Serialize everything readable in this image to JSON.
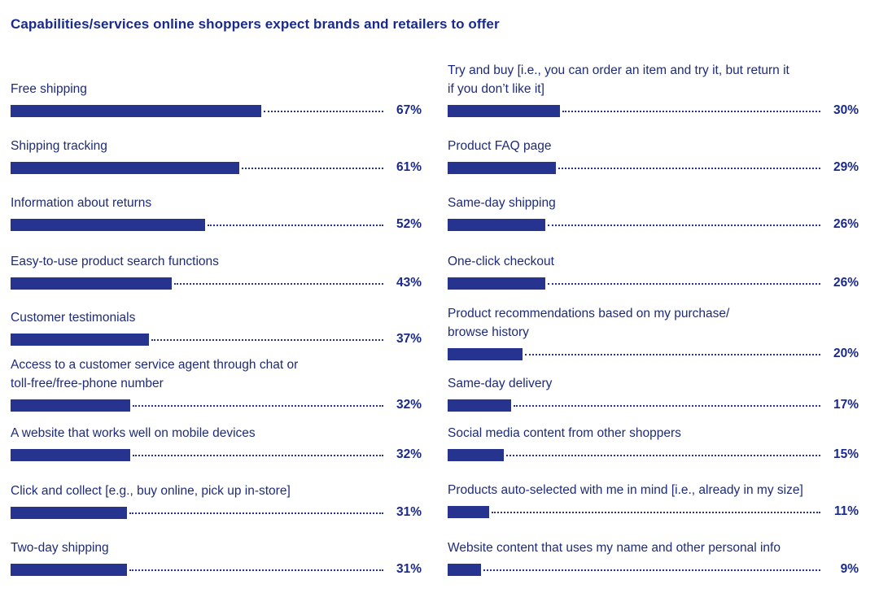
{
  "title": "Capabilities/services online shoppers expect brands and retailers to offer",
  "chart_data": {
    "type": "bar",
    "orientation": "horizontal",
    "title": "Capabilities/services online shoppers expect brands and retailers to offer",
    "xlim": [
      0,
      100
    ],
    "unit": "%",
    "bar_color": "#26348f",
    "columns": [
      {
        "items": [
          {
            "label": "Free shipping",
            "value": 67,
            "value_label": "67%"
          },
          {
            "label": "Shipping tracking",
            "value": 61,
            "value_label": "61%"
          },
          {
            "label": "Information about returns",
            "value": 52,
            "value_label": "52%"
          },
          {
            "label": "Easy-to-use product search functions",
            "value": 43,
            "value_label": "43%"
          },
          {
            "label": "Customer testimonials",
            "value": 37,
            "value_label": "37%"
          },
          {
            "label": "Access to a customer service agent through chat or\ntoll-free/free-phone number",
            "value": 32,
            "value_label": "32%"
          },
          {
            "label": "A website that works well on mobile devices",
            "value": 32,
            "value_label": "32%"
          },
          {
            "label": "Click and collect [e.g., buy online, pick up in-store]",
            "value": 31,
            "value_label": "31%"
          },
          {
            "label": "Two-day shipping",
            "value": 31,
            "value_label": "31%"
          }
        ]
      },
      {
        "items": [
          {
            "label": "Try and buy [i.e., you can order an item and try it, but return it\nif you don’t like it]",
            "value": 30,
            "value_label": "30%"
          },
          {
            "label": "Product FAQ page",
            "value": 29,
            "value_label": "29%"
          },
          {
            "label": "Same-day shipping",
            "value": 26,
            "value_label": "26%"
          },
          {
            "label": "One-click checkout",
            "value": 26,
            "value_label": "26%"
          },
          {
            "label": "Product recommendations based on my purchase/\nbrowse history",
            "value": 20,
            "value_label": "20%"
          },
          {
            "label": "Same-day delivery",
            "value": 17,
            "value_label": "17%"
          },
          {
            "label": "Social media content from other shoppers",
            "value": 15,
            "value_label": "15%"
          },
          {
            "label": "Products auto-selected with me in mind [i.e., already in my size]",
            "value": 11,
            "value_label": "11%"
          },
          {
            "label": "Website content that uses my name and other personal info",
            "value": 9,
            "value_label": "9%"
          }
        ]
      }
    ]
  }
}
